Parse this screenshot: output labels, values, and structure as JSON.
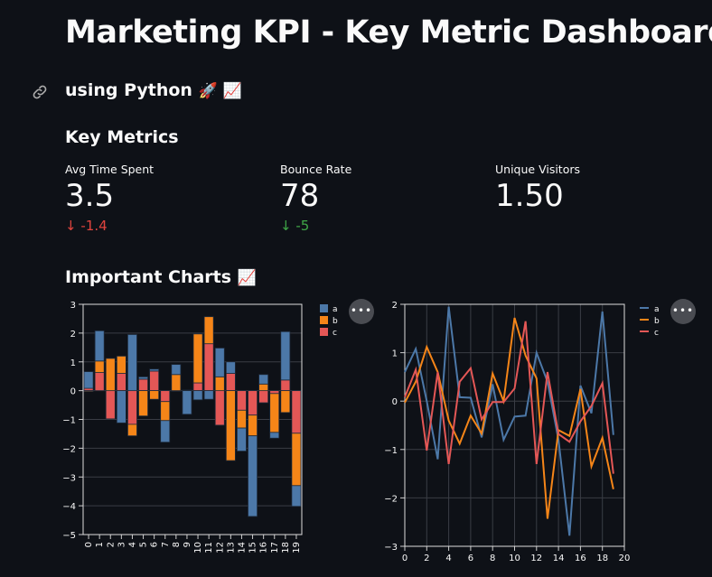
{
  "header": {
    "title": "Marketing KPI - Key Metric Dashboard",
    "subtitle": "using Python",
    "subtitle_emojis": "🚀 📈"
  },
  "key_metrics": {
    "heading": "Key Metrics",
    "metrics": [
      {
        "label": "Avg Time Spent",
        "value": "3.5",
        "delta": "-1.4",
        "delta_arrow": "↓",
        "delta_color": "#e0443e"
      },
      {
        "label": "Bounce Rate",
        "value": "78",
        "delta": "-5",
        "delta_arrow": "↓",
        "delta_color": "#3fa647"
      },
      {
        "label": "Unique Visitors",
        "value": "1.50"
      }
    ]
  },
  "charts_section": {
    "heading": "Important Charts",
    "emoji": "📈",
    "more_label": "•••"
  },
  "series_colors": {
    "a": "#4c78a8",
    "b": "#f58518",
    "c": "#e45756"
  },
  "chart_data": [
    {
      "type": "bar",
      "stacked": true,
      "categories": [
        "0",
        "1",
        "2",
        "3",
        "4",
        "5",
        "6",
        "7",
        "8",
        "9",
        "10",
        "11",
        "12",
        "13",
        "14",
        "15",
        "16",
        "17",
        "18",
        "19"
      ],
      "ylim": [
        -5,
        3
      ],
      "yticks": [
        3,
        2,
        1,
        0,
        -1,
        -2,
        -3,
        -4,
        -5
      ],
      "grid": true,
      "legend": "right",
      "series": [
        {
          "name": "a",
          "values": [
            0.58,
            1.05,
            0.0,
            -1.12,
            1.95,
            0.08,
            0.07,
            -0.75,
            0.35,
            -0.82,
            -0.32,
            -0.3,
            1.0,
            0.4,
            -0.8,
            -2.8,
            0.33,
            -0.2,
            1.68,
            -0.72
          ]
        },
        {
          "name": "b",
          "values": [
            -0.03,
            0.4,
            1.12,
            0.6,
            -0.4,
            -0.88,
            -0.3,
            -0.66,
            0.56,
            0.0,
            1.7,
            0.94,
            0.48,
            -2.43,
            -0.62,
            -0.72,
            0.23,
            -1.35,
            -0.76,
            -1.82
          ]
        },
        {
          "name": "c",
          "values": [
            0.08,
            0.63,
            -0.98,
            0.6,
            -1.17,
            0.4,
            0.68,
            -0.38,
            -0.02,
            0.02,
            0.27,
            1.63,
            -1.2,
            0.6,
            -0.68,
            -0.85,
            -0.42,
            -0.1,
            0.37,
            -1.48
          ]
        }
      ]
    },
    {
      "type": "line",
      "x": [
        0,
        1,
        2,
        3,
        4,
        5,
        6,
        7,
        8,
        9,
        10,
        11,
        12,
        13,
        14,
        15,
        16,
        17,
        18,
        19
      ],
      "xlim": [
        0,
        20
      ],
      "xticks": [
        0,
        2,
        4,
        6,
        8,
        10,
        12,
        14,
        16,
        18,
        20
      ],
      "ylim": [
        -3,
        2
      ],
      "yticks": [
        2,
        1,
        0,
        -1,
        -2,
        -3
      ],
      "grid": true,
      "legend": "right",
      "series": [
        {
          "name": "a",
          "values": [
            0.6,
            1.08,
            0.0,
            -1.2,
            1.95,
            0.08,
            0.07,
            -0.75,
            0.35,
            -0.8,
            -0.32,
            -0.3,
            1.0,
            0.4,
            -0.8,
            -2.78,
            0.32,
            -0.25,
            1.85,
            -0.7
          ]
        },
        {
          "name": "b",
          "values": [
            -0.03,
            0.4,
            1.12,
            0.6,
            -0.4,
            -0.88,
            -0.3,
            -0.67,
            0.57,
            0.0,
            1.72,
            0.94,
            0.47,
            -2.43,
            -0.6,
            -0.72,
            0.25,
            -1.35,
            -0.76,
            -1.82
          ]
        },
        {
          "name": "c",
          "values": [
            0.08,
            0.65,
            -1.02,
            0.6,
            -1.3,
            0.4,
            0.68,
            -0.38,
            -0.02,
            -0.02,
            0.26,
            1.65,
            -1.3,
            0.6,
            -0.68,
            -0.84,
            -0.42,
            -0.1,
            0.37,
            -1.5
          ]
        }
      ]
    }
  ]
}
